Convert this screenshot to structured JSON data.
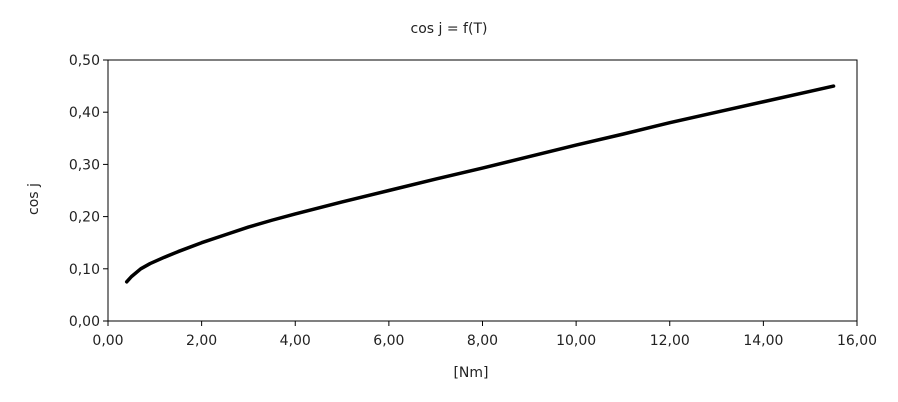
{
  "chart_data": {
    "type": "line",
    "title": "cos j = f(T)",
    "xlabel": "[Nm]",
    "ylabel": "cos j",
    "xlim": [
      0,
      16
    ],
    "ylim": [
      0,
      0.5
    ],
    "x_ticks": [
      "0,00",
      "2,00",
      "4,00",
      "6,00",
      "8,00",
      "10,00",
      "12,00",
      "14,00",
      "16,00"
    ],
    "y_ticks": [
      "0,00",
      "0,10",
      "0,20",
      "0,30",
      "0,40",
      "0,50"
    ],
    "grid": false,
    "legend": "none",
    "line_color": "#000000",
    "series": [
      {
        "x": [
          0.4,
          0.5,
          0.7,
          0.9,
          1.2,
          1.5,
          2.0,
          2.5,
          3.0,
          3.5,
          4.0,
          5.0,
          6.0,
          7.0,
          8.0,
          9.0,
          10.0,
          11.0,
          12.0,
          13.0,
          14.0,
          15.0,
          15.5
        ],
        "y": [
          0.075,
          0.085,
          0.1,
          0.11,
          0.122,
          0.133,
          0.15,
          0.165,
          0.18,
          0.193,
          0.205,
          0.228,
          0.25,
          0.272,
          0.293,
          0.315,
          0.337,
          0.358,
          0.38,
          0.4,
          0.42,
          0.44,
          0.45
        ]
      }
    ]
  }
}
